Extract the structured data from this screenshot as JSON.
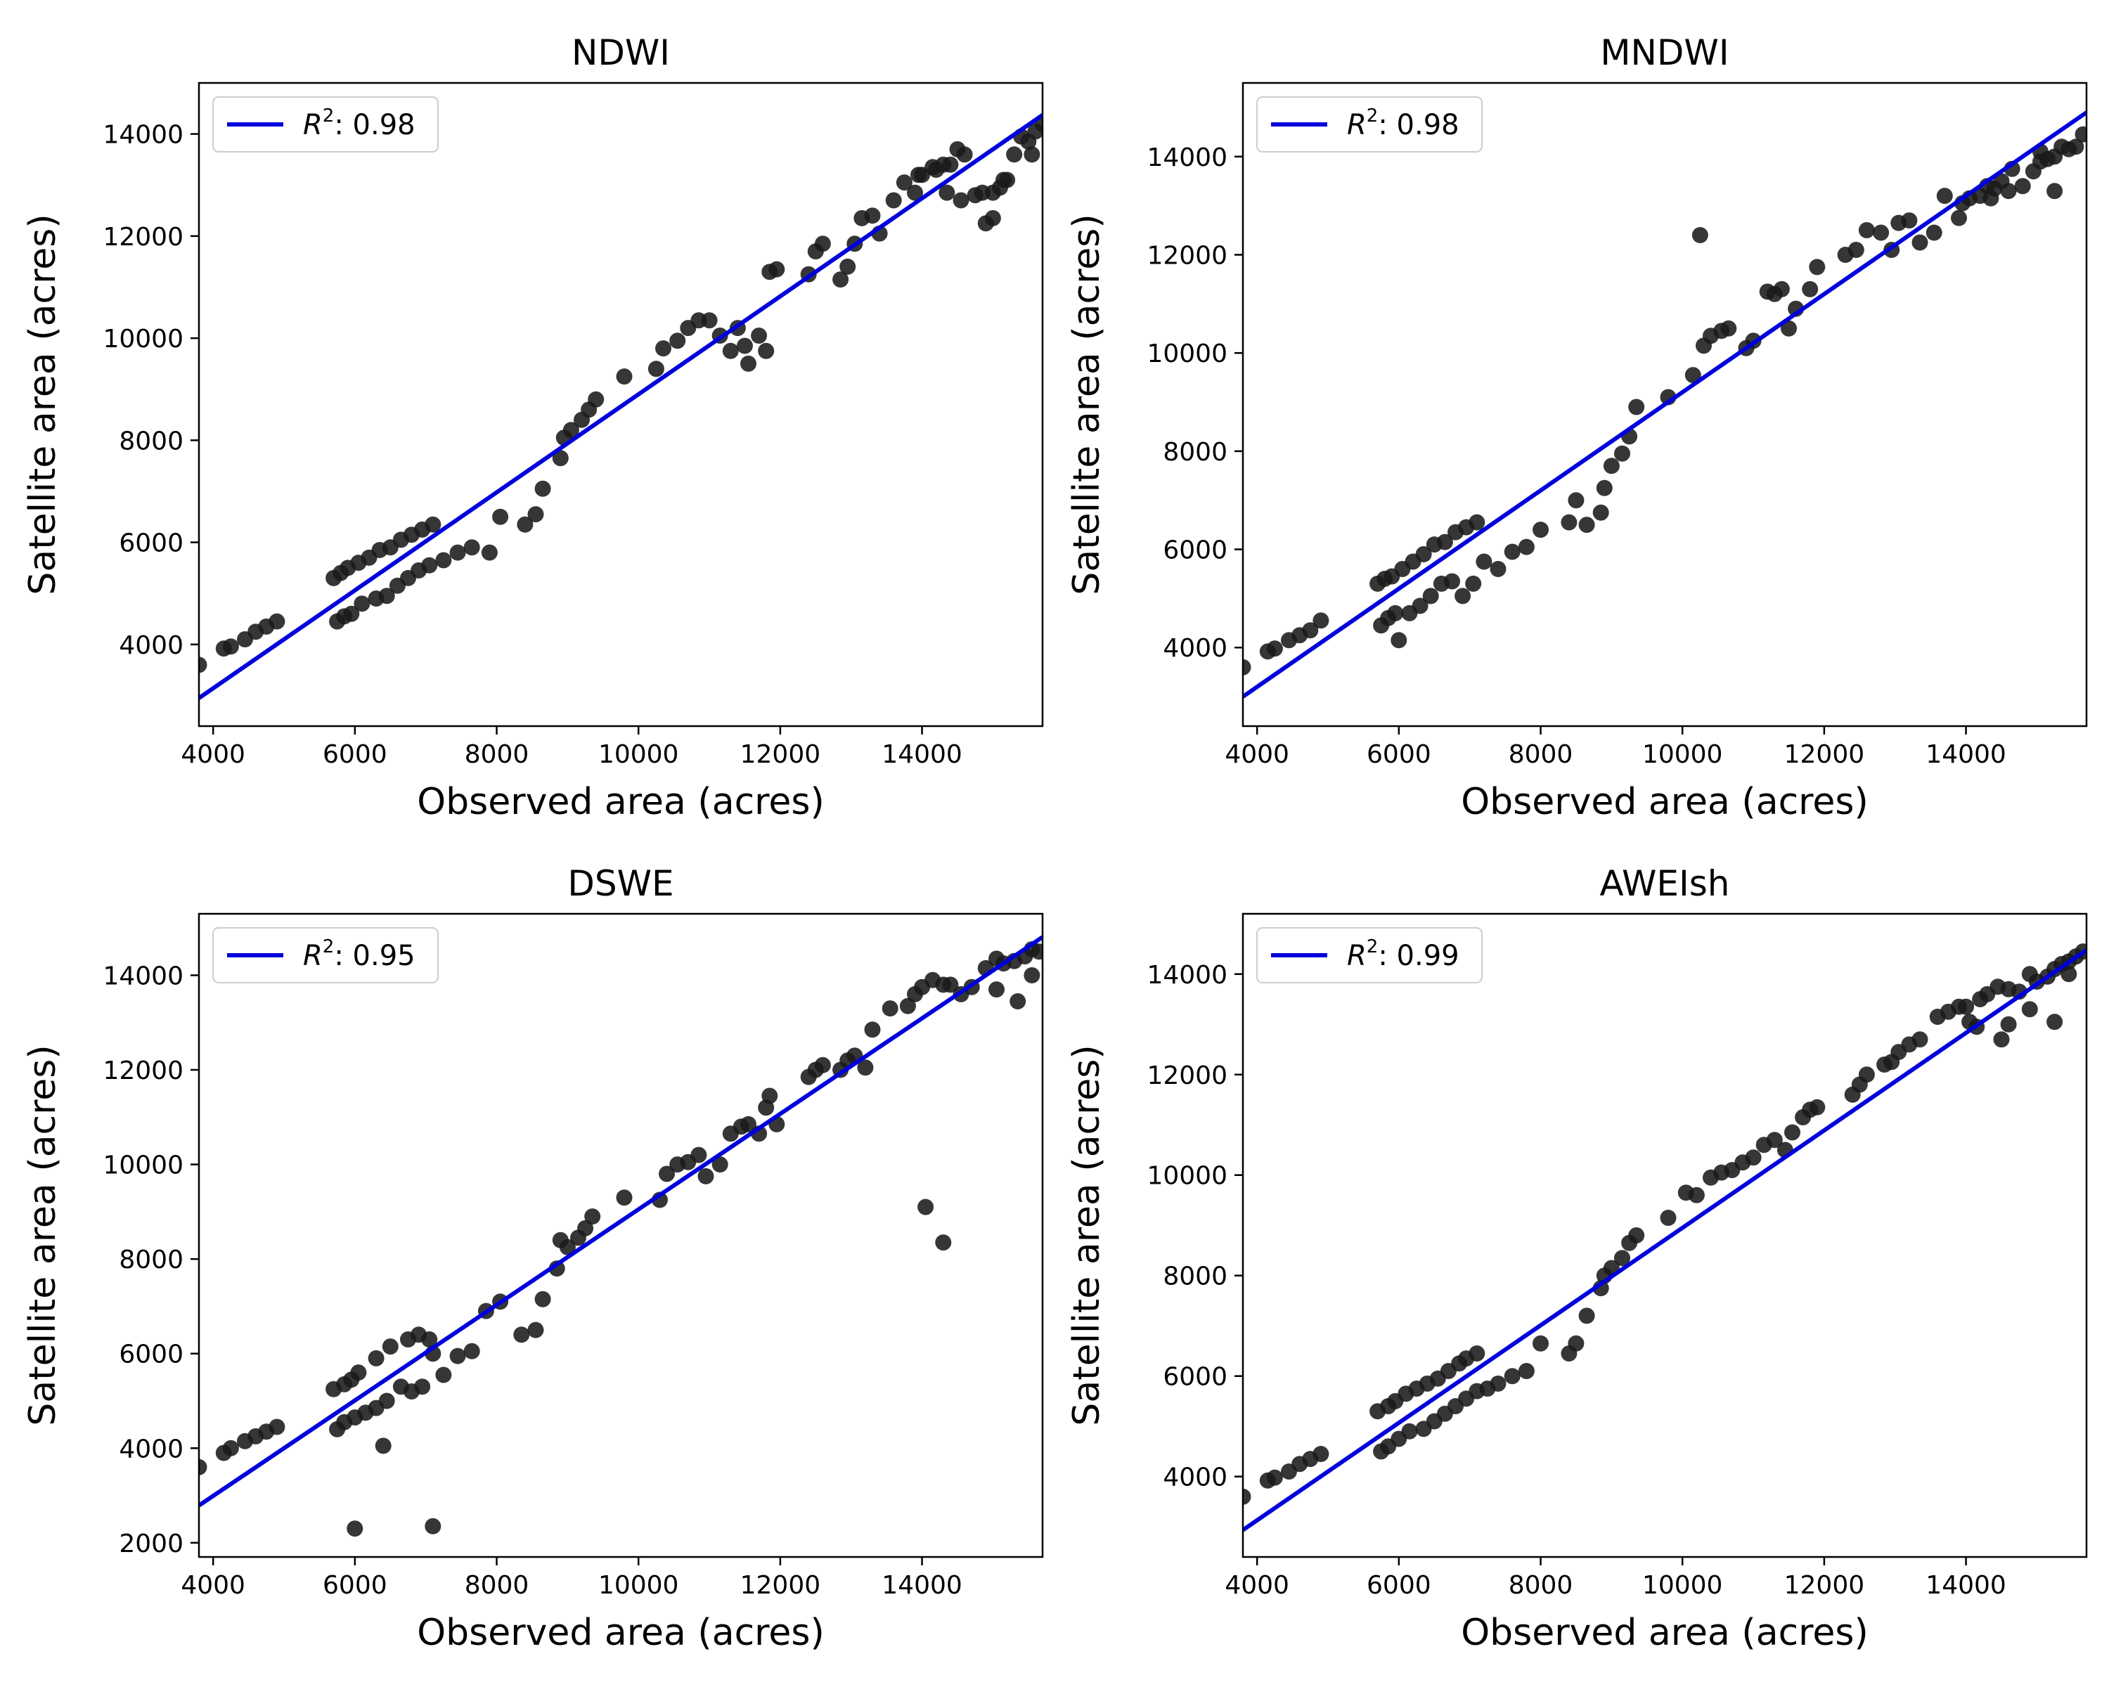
{
  "chart_data": [
    {
      "type": "scatter",
      "title": "NDWI",
      "xlabel": "Observed area (acres)",
      "ylabel": "Satellite area (acres)",
      "xlim": [
        3800,
        15700
      ],
      "ylim": [
        2400,
        15000
      ],
      "xticks": [
        4000,
        6000,
        8000,
        10000,
        12000,
        14000
      ],
      "yticks": [
        4000,
        6000,
        8000,
        10000,
        12000,
        14000
      ],
      "grid": false,
      "legend": {
        "position": "top-left",
        "entries": [
          {
            "symbol": "R",
            "sup": "2",
            "text": ": 0.98"
          }
        ]
      },
      "fit": {
        "slope": 0.96,
        "intercept": -700,
        "color": "#0000dd"
      },
      "marker_color": "#1a1a1a",
      "x": [
        3800,
        4150,
        4250,
        4450,
        4600,
        4750,
        4900,
        5700,
        5800,
        5900,
        6050,
        6200,
        6350,
        6500,
        6650,
        6800,
        6950,
        7100,
        5750,
        5850,
        5950,
        6100,
        6300,
        6450,
        6600,
        6750,
        6900,
        7050,
        7250,
        7450,
        7650,
        7900,
        8050,
        8400,
        8550,
        8650,
        8900,
        8950,
        9050,
        9200,
        9300,
        9400,
        9800,
        10250,
        10350,
        10550,
        10700,
        10850,
        11000,
        11150,
        11300,
        11400,
        11500,
        11550,
        11700,
        11800,
        11850,
        11950,
        12400,
        12500,
        12600,
        12850,
        12950,
        13050,
        13150,
        13300,
        13400,
        13600,
        13750,
        13900,
        14000,
        14200,
        14300,
        14400,
        14500,
        14600,
        14750,
        14900,
        15000,
        15100,
        15200,
        15300,
        15400,
        15500,
        15600,
        15700,
        13950,
        14150,
        14350,
        14550,
        14850,
        15000,
        15150,
        15550
      ],
      "y": [
        3600,
        3920,
        3960,
        4100,
        4250,
        4350,
        4450,
        5300,
        5400,
        5500,
        5600,
        5700,
        5850,
        5900,
        6050,
        6150,
        6250,
        6350,
        4450,
        4550,
        4600,
        4800,
        4900,
        4950,
        5150,
        5300,
        5450,
        5550,
        5650,
        5800,
        5900,
        5800,
        6500,
        6350,
        6550,
        7050,
        7650,
        8050,
        8200,
        8400,
        8600,
        8800,
        9250,
        9400,
        9800,
        9950,
        10200,
        10350,
        10350,
        10050,
        9750,
        10200,
        9850,
        9500,
        10050,
        9750,
        11300,
        11350,
        11250,
        11700,
        11850,
        11150,
        11400,
        11850,
        12350,
        12400,
        12050,
        12700,
        13050,
        12850,
        13200,
        13300,
        13400,
        13400,
        13700,
        13600,
        12800,
        12250,
        12350,
        12950,
        13100,
        13600,
        13950,
        13850,
        14050,
        14200,
        13200,
        13350,
        12850,
        12700,
        12850,
        12850,
        13100,
        13600
      ]
    },
    {
      "type": "scatter",
      "title": "MNDWI",
      "xlabel": "Observed area (acres)",
      "ylabel": "Satellite area (acres)",
      "xlim": [
        3800,
        15700
      ],
      "ylim": [
        2400,
        15500
      ],
      "xticks": [
        4000,
        6000,
        8000,
        10000,
        12000,
        14000
      ],
      "yticks": [
        4000,
        6000,
        8000,
        10000,
        12000,
        14000
      ],
      "grid": false,
      "legend": {
        "position": "top-left",
        "entries": [
          {
            "symbol": "R",
            "sup": "2",
            "text": ": 0.98"
          }
        ]
      },
      "fit": {
        "slope": 1.0,
        "intercept": -800,
        "color": "#0000dd"
      },
      "marker_color": "#1a1a1a",
      "x": [
        3800,
        4150,
        4250,
        4450,
        4600,
        4750,
        4900,
        5700,
        5800,
        5900,
        6050,
        6200,
        6350,
        6500,
        6650,
        6800,
        6950,
        7100,
        5750,
        5850,
        5950,
        6000,
        6150,
        6300,
        6450,
        6600,
        6750,
        6900,
        7050,
        7200,
        7400,
        7600,
        7800,
        8000,
        8400,
        8500,
        8650,
        8850,
        8900,
        9000,
        9150,
        9250,
        9350,
        9800,
        10150,
        10300,
        10400,
        10550,
        10650,
        10900,
        11000,
        11200,
        11300,
        11400,
        11500,
        11600,
        11800,
        11900,
        12300,
        12450,
        12600,
        12800,
        12950,
        13050,
        13200,
        13350,
        13550,
        13700,
        13900,
        14050,
        14200,
        14300,
        14400,
        14500,
        14650,
        14800,
        14950,
        15050,
        15150,
        15250,
        15350,
        15450,
        15550,
        15650,
        10250,
        13950,
        14350,
        14600,
        15250,
        15050
      ],
      "y": [
        3600,
        3920,
        3980,
        4150,
        4250,
        4350,
        4550,
        5300,
        5400,
        5450,
        5600,
        5750,
        5900,
        6100,
        6150,
        6350,
        6450,
        6550,
        4450,
        4600,
        4700,
        4150,
        4700,
        4850,
        5050,
        5300,
        5350,
        5050,
        5300,
        5750,
        5600,
        5950,
        6050,
        6400,
        6550,
        7000,
        6500,
        6750,
        7250,
        7700,
        7950,
        8300,
        8900,
        9100,
        9550,
        10150,
        10350,
        10450,
        10500,
        10100,
        10250,
        11250,
        11200,
        11300,
        10500,
        10900,
        11300,
        11750,
        12000,
        12100,
        12500,
        12450,
        12100,
        12650,
        12700,
        12250,
        12450,
        13200,
        12750,
        13150,
        13200,
        13400,
        13350,
        13500,
        13750,
        13400,
        13700,
        13900,
        13950,
        14000,
        14200,
        14150,
        14200,
        14450,
        12400,
        13050,
        13150,
        13300,
        13300,
        14100
      ]
    },
    {
      "type": "scatter",
      "title": "DSWE",
      "xlabel": "Observed area (acres)",
      "ylabel": "Satellite area (acres)",
      "xlim": [
        3800,
        15700
      ],
      "ylim": [
        1700,
        15300
      ],
      "xticks": [
        4000,
        6000,
        8000,
        10000,
        12000,
        14000
      ],
      "yticks": [
        2000,
        4000,
        6000,
        8000,
        10000,
        12000,
        14000
      ],
      "grid": false,
      "legend": {
        "position": "top-left",
        "entries": [
          {
            "symbol": "R",
            "sup": "2",
            "text": ": 0.95"
          }
        ]
      },
      "fit": {
        "slope": 1.01,
        "intercept": -1050,
        "color": "#0000dd"
      },
      "marker_color": "#1a1a1a",
      "x": [
        3800,
        4150,
        4250,
        4450,
        4600,
        4750,
        4900,
        5700,
        5850,
        5950,
        6050,
        6300,
        6500,
        6750,
        6900,
        7050,
        5750,
        5850,
        6000,
        6150,
        6300,
        6450,
        6650,
        6800,
        6950,
        7100,
        7250,
        7450,
        7650,
        7850,
        8050,
        8350,
        8550,
        8650,
        8850,
        8900,
        9000,
        9150,
        9250,
        9350,
        9800,
        10300,
        10400,
        10550,
        10700,
        10850,
        10950,
        11150,
        11300,
        11450,
        11550,
        11700,
        11800,
        11850,
        11950,
        12400,
        12500,
        12600,
        12850,
        12950,
        13050,
        13200,
        13300,
        13550,
        13800,
        13900,
        14000,
        14150,
        14300,
        14400,
        14550,
        14700,
        14900,
        15050,
        15150,
        15300,
        15450,
        15550,
        15650,
        6000,
        7100,
        6400,
        14050,
        14300,
        15350,
        15050,
        15550
      ],
      "y": [
        3600,
        3900,
        4000,
        4150,
        4250,
        4350,
        4450,
        5250,
        5350,
        5450,
        5600,
        5900,
        6150,
        6300,
        6400,
        6300,
        4400,
        4550,
        4650,
        4750,
        4850,
        5000,
        5300,
        5200,
        5300,
        6000,
        5550,
        5950,
        6050,
        6900,
        7100,
        6400,
        6500,
        7150,
        7800,
        8400,
        8250,
        8450,
        8650,
        8900,
        9300,
        9250,
        9800,
        10000,
        10050,
        10200,
        9750,
        10000,
        10650,
        10800,
        10850,
        10650,
        11200,
        11450,
        10850,
        11850,
        12000,
        12100,
        12000,
        12200,
        12300,
        12050,
        12850,
        13300,
        13350,
        13600,
        13750,
        13900,
        13800,
        13800,
        13600,
        13750,
        14150,
        14350,
        14250,
        14300,
        14400,
        14550,
        14500,
        2300,
        2350,
        4050,
        9100,
        8350,
        13450,
        13700,
        14000
      ]
    },
    {
      "type": "scatter",
      "title": "AWEIsh",
      "xlabel": "Observed area (acres)",
      "ylabel": "Satellite area (acres)",
      "xlim": [
        3800,
        15700
      ],
      "ylim": [
        2400,
        15200
      ],
      "xticks": [
        4000,
        6000,
        8000,
        10000,
        12000,
        14000
      ],
      "yticks": [
        4000,
        6000,
        8000,
        10000,
        12000,
        14000
      ],
      "grid": false,
      "legend": {
        "position": "top-left",
        "entries": [
          {
            "symbol": "R",
            "sup": "2",
            "text": ": 0.99"
          }
        ]
      },
      "fit": {
        "slope": 0.97,
        "intercept": -750,
        "color": "#0000dd"
      },
      "marker_color": "#1a1a1a",
      "x": [
        3800,
        4150,
        4250,
        4450,
        4600,
        4750,
        4900,
        5700,
        5850,
        5950,
        6100,
        6250,
        6400,
        6550,
        6700,
        6850,
        6950,
        7100,
        5750,
        5850,
        6000,
        6150,
        6350,
        6500,
        6650,
        6800,
        6950,
        7100,
        7250,
        7400,
        7600,
        7800,
        8000,
        8400,
        8500,
        8650,
        8850,
        8900,
        9000,
        9150,
        9250,
        9350,
        9800,
        10050,
        10200,
        10400,
        10550,
        10700,
        10850,
        11000,
        11150,
        11300,
        11450,
        11550,
        11700,
        11800,
        11900,
        12400,
        12500,
        12600,
        12850,
        12950,
        13050,
        13200,
        13350,
        13600,
        13750,
        13900,
        14000,
        14200,
        14300,
        14450,
        14600,
        14750,
        14900,
        15000,
        15150,
        15250,
        15350,
        15450,
        15550,
        15650,
        14050,
        14150,
        14500,
        14600,
        14900,
        15250,
        15450
      ],
      "y": [
        3600,
        3920,
        3980,
        4100,
        4250,
        4350,
        4450,
        5300,
        5400,
        5500,
        5650,
        5750,
        5850,
        5950,
        6100,
        6250,
        6350,
        6450,
        4500,
        4600,
        4750,
        4900,
        4950,
        5100,
        5250,
        5400,
        5550,
        5700,
        5750,
        5850,
        6000,
        6100,
        6650,
        6450,
        6650,
        7200,
        7750,
        8000,
        8150,
        8350,
        8650,
        8800,
        9150,
        9650,
        9600,
        9950,
        10050,
        10100,
        10250,
        10350,
        10600,
        10700,
        10500,
        10850,
        11150,
        11300,
        11350,
        11600,
        11800,
        12000,
        12200,
        12250,
        12450,
        12600,
        12700,
        13150,
        13250,
        13350,
        13350,
        13500,
        13600,
        13750,
        13700,
        13650,
        14000,
        13850,
        13950,
        14100,
        14200,
        14250,
        14350,
        14450,
        13050,
        12950,
        12700,
        13000,
        13300,
        13050,
        14000
      ]
    }
  ]
}
